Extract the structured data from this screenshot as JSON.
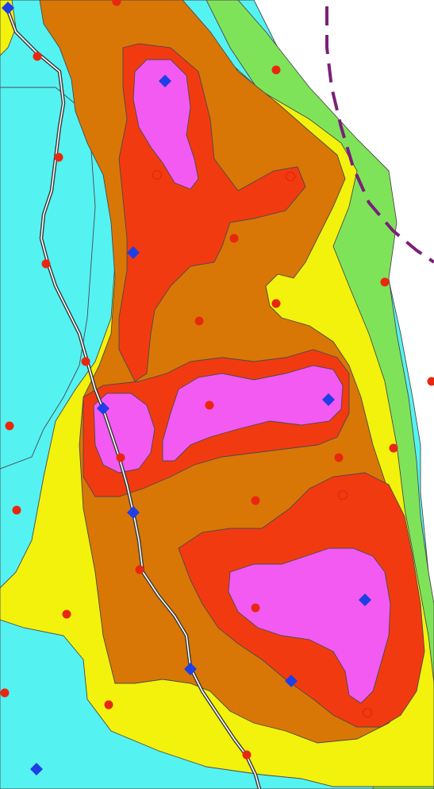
{
  "map": {
    "colors": {
      "background": "#ffffff",
      "zone_cyan": "#55f2f2",
      "zone_green": "#7fe35a",
      "zone_yellow": "#f2f20c",
      "zone_orange": "#d97706",
      "zone_red": "#f23a10",
      "zone_magenta": "#f25af2",
      "road_casing": "#3a3a3a",
      "road_fill": "#ffffff",
      "boundary": "#7b1f7b",
      "circle_marker": "#e8280e",
      "diamond_marker": "#1f3fe6"
    },
    "legend": [],
    "layers": [
      "contour-zones",
      "road",
      "boundary-line",
      "circle-markers",
      "diamond-markers"
    ]
  }
}
